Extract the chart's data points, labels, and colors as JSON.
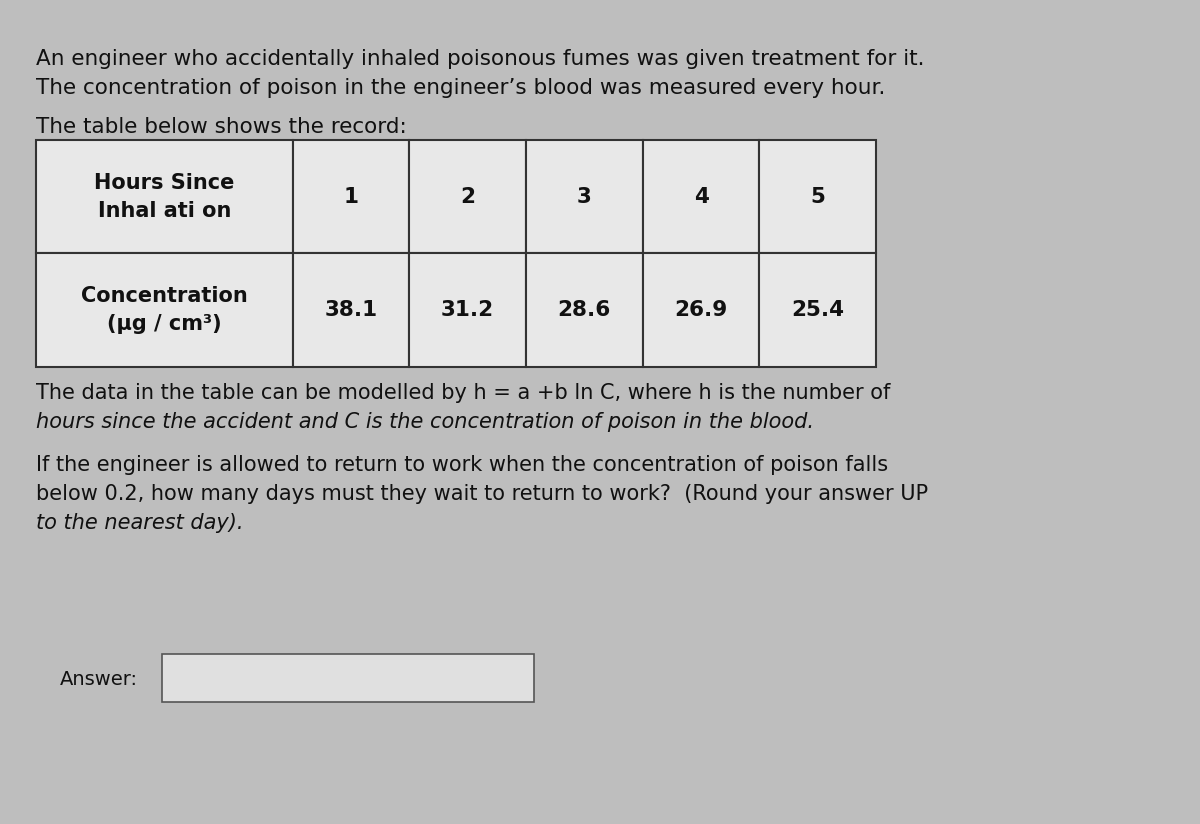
{
  "title_line1": "An engineer who accidentally inhaled poisonous fumes was given treatment for it.",
  "title_line2": "The concentration of poison in the engineer’s blood was measured every hour.",
  "table_intro": "The table below shows the record:",
  "table_row1_header": "Hours Since\nInhal ati on",
  "table_row1_values": [
    "1",
    "2",
    "3",
    "4",
    "5"
  ],
  "table_row2_label": "Concentration\n(μg / cm³)",
  "table_row2_values": [
    "38.1",
    "31.2",
    "28.6",
    "26.9",
    "25.4"
  ],
  "model_text_line1": "The data in the table can be modelled by h = a +b ln C, where h is the number of",
  "model_text_line2": "hours since the accident and C is the concentration of poison in the blood.",
  "question_line1": "If the engineer is allowed to return to work when the concentration of poison falls",
  "question_line2": "below 0.2, how many days must they wait to return to work?  (Round your answer UP",
  "question_line3": "to the nearest day).",
  "answer_label": "Answer:",
  "bg_color": "#bebebe",
  "panel_color": "#d0d0d0",
  "text_color": "#111111",
  "table_bg": "#e8e8e8",
  "answer_box_color": "#e0e0e0",
  "font_size_main": 15.5,
  "font_size_table": 15.5,
  "font_size_answer": 14
}
